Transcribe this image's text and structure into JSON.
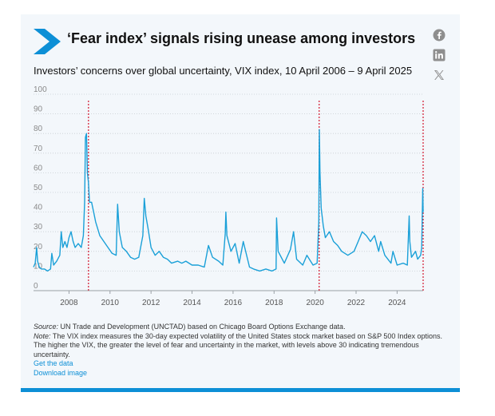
{
  "header": {
    "title": "‘Fear index’ signals rising unease among investors",
    "subtitle": "Investors’ concerns over global uncertainty, VIX index, 10 April 2006 – 9 April 2025"
  },
  "social": {
    "icons": [
      "facebook-icon",
      "linkedin-icon",
      "x-icon"
    ]
  },
  "colors": {
    "accent": "#0d8fd6",
    "series": "#1aa0d8",
    "marker": "#d0021b",
    "grid": "#c8cdd2"
  },
  "footer": {
    "source_label": "Source:",
    "source_text": "UN Trade and Development (UNCTAD) based on Chicago Board Options Exchange data.",
    "note_label": "Note:",
    "note_text": "The VIX index measures the 30-day expected volatility of the United States stock market based on S&P 500 Index options. The higher the VIX, the greater the level of fear and uncertainty in the market, with levels above 30 indicating tremendous uncertainty.",
    "get_data": "Get the data",
    "download": "Download image"
  },
  "chart_data": {
    "type": "line",
    "ylim": [
      0,
      100
    ],
    "yticks": [
      0,
      10,
      20,
      30,
      40,
      50,
      60,
      70,
      80,
      90,
      100
    ],
    "xlim": [
      2006.27,
      2025.27
    ],
    "xticks": [
      "2008",
      "2010",
      "2012",
      "2014",
      "2016",
      "2018",
      "2020",
      "2022",
      "2024"
    ],
    "grid": true,
    "series": [
      {
        "name": "",
        "x": [
          2006.27,
          2006.35,
          2006.42,
          2006.47,
          2006.55,
          2006.65,
          2006.8,
          2006.95,
          2007.1,
          2007.16,
          2007.25,
          2007.4,
          2007.55,
          2007.62,
          2007.7,
          2007.8,
          2007.9,
          2008.0,
          2008.1,
          2008.2,
          2008.3,
          2008.45,
          2008.6,
          2008.7,
          2008.76,
          2008.8,
          2008.85,
          2008.9,
          2008.95,
          2009.0,
          2009.1,
          2009.2,
          2009.3,
          2009.5,
          2009.7,
          2009.9,
          2010.1,
          2010.3,
          2010.37,
          2010.45,
          2010.6,
          2010.8,
          2011.0,
          2011.2,
          2011.4,
          2011.6,
          2011.67,
          2011.75,
          2011.85,
          2012.0,
          2012.2,
          2012.4,
          2012.6,
          2012.8,
          2013.0,
          2013.3,
          2013.5,
          2013.7,
          2014.0,
          2014.3,
          2014.6,
          2014.8,
          2015.0,
          2015.3,
          2015.5,
          2015.62,
          2015.65,
          2015.7,
          2015.9,
          2016.1,
          2016.3,
          2016.5,
          2016.8,
          2017.0,
          2017.3,
          2017.6,
          2017.9,
          2018.1,
          2018.12,
          2018.2,
          2018.5,
          2018.8,
          2018.95,
          2019.1,
          2019.4,
          2019.6,
          2019.9,
          2020.1,
          2020.18,
          2020.21,
          2020.24,
          2020.3,
          2020.4,
          2020.5,
          2020.7,
          2020.9,
          2021.1,
          2021.3,
          2021.6,
          2021.9,
          2022.1,
          2022.3,
          2022.5,
          2022.7,
          2022.9,
          2023.1,
          2023.2,
          2023.4,
          2023.7,
          2023.8,
          2024.0,
          2024.3,
          2024.5,
          2024.59,
          2024.62,
          2024.7,
          2024.9,
          2025.0,
          2025.15,
          2025.2,
          2025.25,
          2025.27
        ],
        "y": [
          12,
          14,
          22,
          15,
          12,
          11,
          11,
          10,
          11,
          19,
          13,
          15,
          18,
          30,
          22,
          25,
          22,
          27,
          30,
          25,
          22,
          24,
          22,
          28,
          45,
          78,
          80,
          60,
          55,
          45,
          45,
          40,
          35,
          28,
          25,
          22,
          19,
          18,
          44,
          30,
          22,
          20,
          17,
          16,
          17,
          28,
          47,
          38,
          32,
          22,
          18,
          20,
          17,
          16,
          14,
          15,
          14,
          15,
          13,
          13,
          12,
          23,
          17,
          15,
          13,
          29,
          40,
          28,
          20,
          24,
          14,
          25,
          12,
          11,
          10,
          11,
          10,
          11,
          37,
          20,
          14,
          21,
          30,
          16,
          13,
          18,
          13,
          14,
          35,
          82,
          60,
          42,
          33,
          27,
          30,
          25,
          23,
          20,
          18,
          20,
          25,
          30,
          28,
          25,
          28,
          20,
          25,
          18,
          14,
          20,
          13,
          14,
          13,
          38,
          25,
          17,
          20,
          16,
          18,
          22,
          52,
          40
        ]
      }
    ],
    "annotations": [
      2008.95,
      2020.2,
      2025.27
    ]
  }
}
